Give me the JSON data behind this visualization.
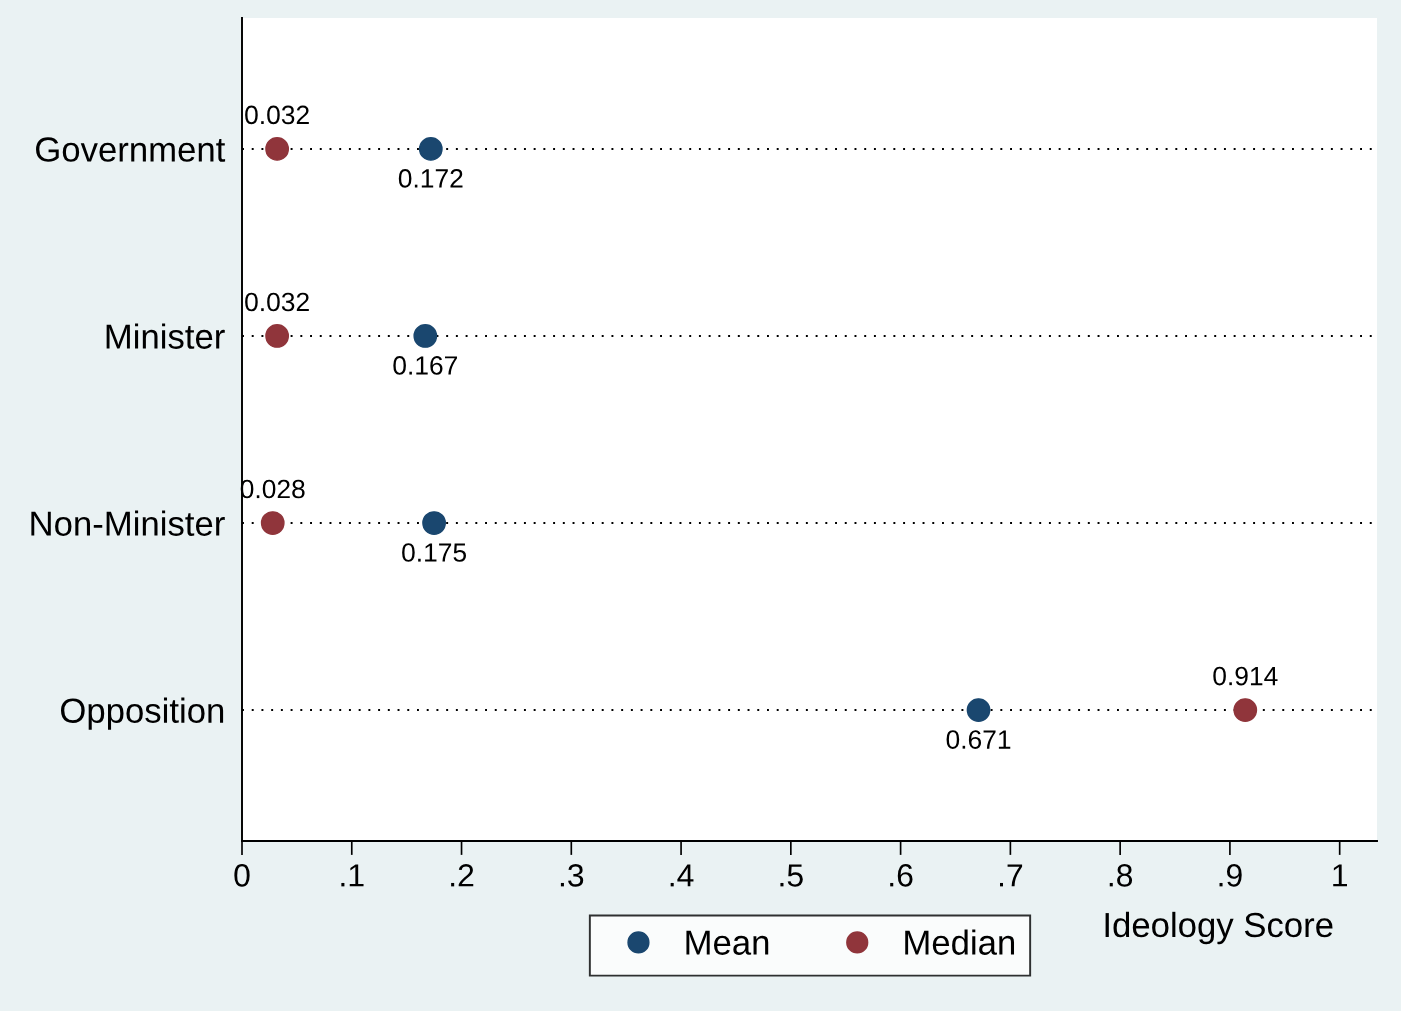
{
  "chart_data": {
    "type": "scatter",
    "orientation": "horizontal",
    "categories": [
      "Government",
      "Minister",
      "Non-Minister",
      "Opposition"
    ],
    "series": [
      {
        "name": "Mean",
        "color": "#1a476f",
        "values": [
          0.172,
          0.167,
          0.175,
          0.671
        ]
      },
      {
        "name": "Median",
        "color": "#90353b",
        "values": [
          0.032,
          0.032,
          0.028,
          0.914
        ]
      }
    ],
    "xlabel": "Ideology Score",
    "xlim": [
      0,
      1.034
    ],
    "xticks": [
      0,
      {
        "value": 0.1,
        "label": ".1"
      },
      {
        "value": 0.2,
        "label": ".2"
      },
      {
        "value": 0.3,
        "label": ".3"
      },
      {
        "value": 0.4,
        "label": ".4"
      },
      {
        "value": 0.5,
        "label": ".5"
      },
      {
        "value": 0.6,
        "label": ".6"
      },
      {
        "value": 0.7,
        "label": ".7"
      },
      {
        "value": 0.8,
        "label": ".8"
      },
      {
        "value": 0.9,
        "label": ".9"
      },
      1
    ],
    "grid": "y",
    "marker": "circle",
    "legend": "bottom",
    "data_labels": true
  }
}
